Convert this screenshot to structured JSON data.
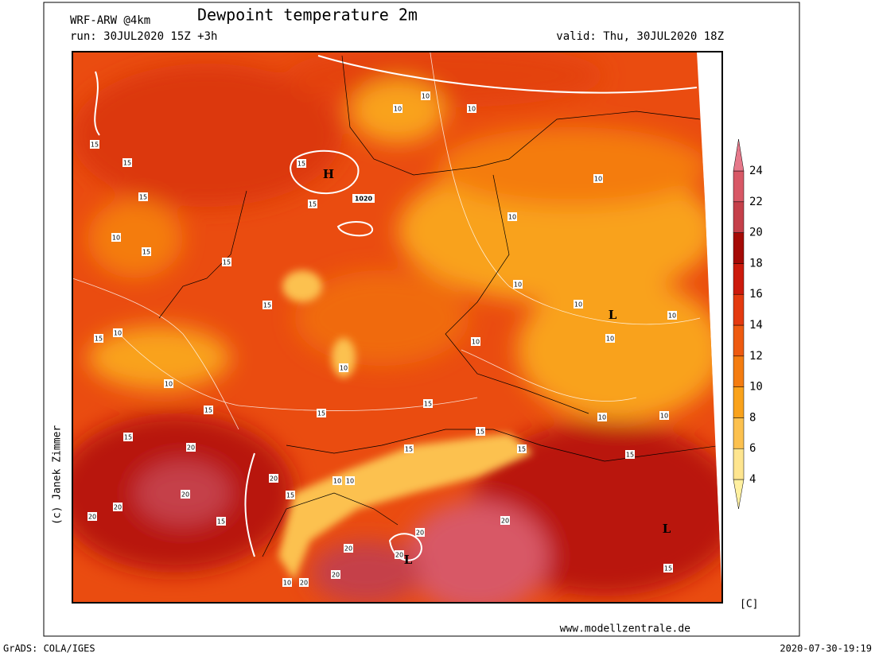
{
  "header": {
    "model": "WRF-ARW @4km",
    "title": "Dewpoint temperature 2m",
    "run": "run: 30JUL2020 15Z +3h",
    "valid": "valid: Thu, 30JUL2020 18Z"
  },
  "colorbar": {
    "levels": [
      4,
      6,
      8,
      10,
      12,
      14,
      16,
      18,
      20,
      22,
      24
    ],
    "colors": [
      "#fff0a0",
      "#fee58f",
      "#fcc14f",
      "#f9a21b",
      "#f47c10",
      "#ee5a10",
      "#e43a0f",
      "#cc1a0c",
      "#a50a06",
      "#c5404a",
      "#d85866",
      "#e6788a"
    ],
    "unit": "[C]"
  },
  "map": {
    "credit": "(c) Janek Zimmer",
    "labels": [
      10,
      10,
      10,
      10,
      10,
      10,
      10,
      10,
      10,
      10,
      10,
      10,
      10,
      10,
      10,
      10,
      10,
      10,
      10,
      15,
      15,
      15,
      15,
      15,
      15,
      15,
      15,
      15,
      15,
      15,
      15,
      15,
      15,
      15,
      15,
      15,
      15,
      15,
      15,
      20,
      20,
      20,
      20,
      20,
      20,
      20,
      20,
      20,
      20,
      20,
      "H",
      "L",
      "L",
      "L",
      1020
    ]
  },
  "footer": {
    "url": "www.modellzentrale.de",
    "left": "GrADS: COLA/IGES",
    "right": "2020-07-30-19:19"
  }
}
